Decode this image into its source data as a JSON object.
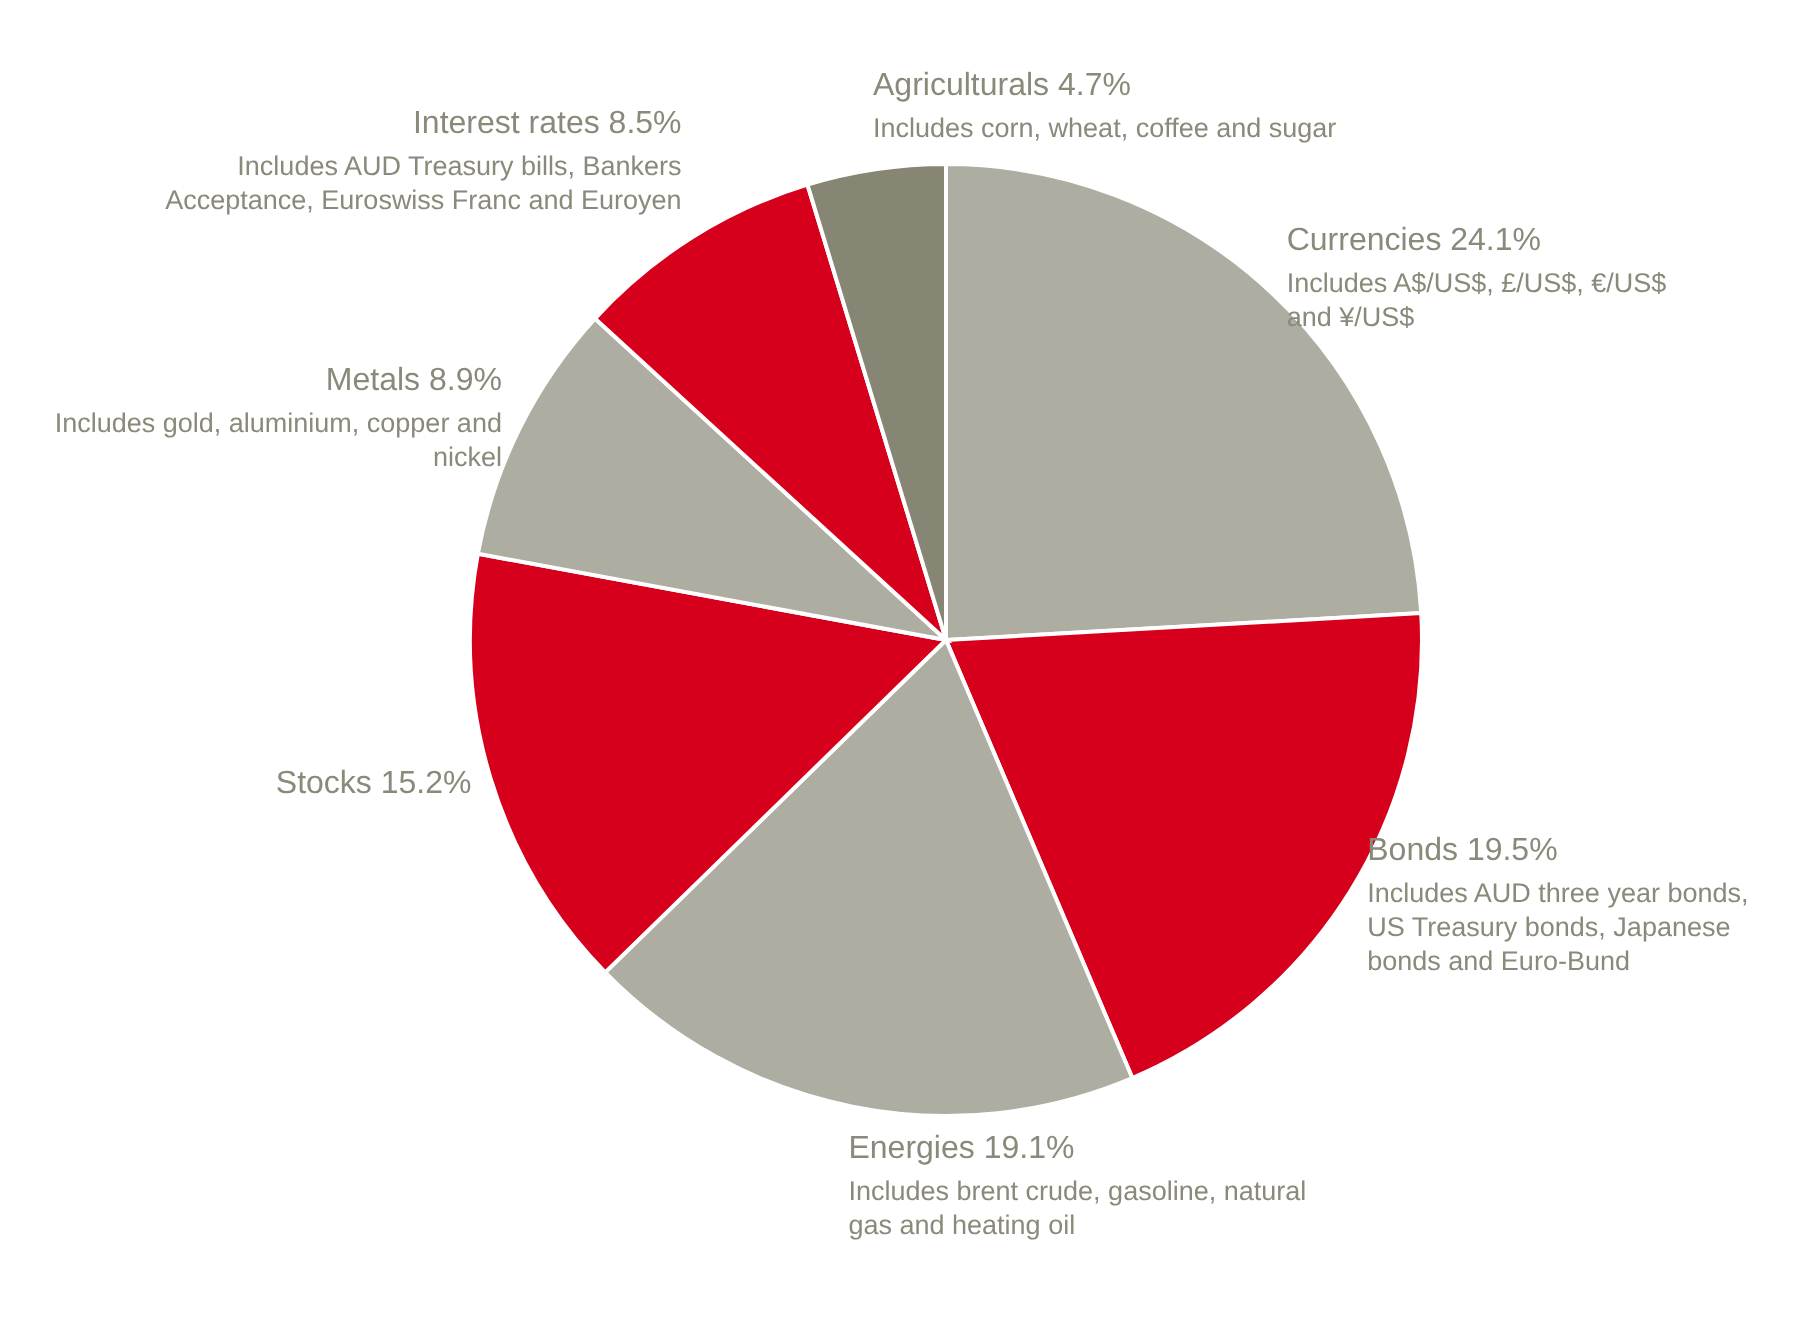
{
  "chart_data": {
    "type": "pie",
    "categories": [
      "Currencies",
      "Bonds",
      "Energies",
      "Stocks",
      "Metals",
      "Interest rates",
      "Agriculturals"
    ],
    "values": [
      24.1,
      19.5,
      19.1,
      15.2,
      8.9,
      8.5,
      4.7
    ],
    "value_labels": [
      "24.1%",
      "19.5%",
      "19.1%",
      "15.2%",
      "8.9%",
      "8.5%",
      "4.7%"
    ],
    "colors": [
      "#aeada1",
      "#d7001c",
      "#aeada1",
      "#d7001c",
      "#aeada1",
      "#d7001c",
      "#878675"
    ],
    "annotations": [
      {
        "text": "Includes A$/US$, £/US$, €/US$ and ¥/US$",
        "x": "Currencies"
      },
      {
        "text": "Includes AUD three year bonds, US Treasury bonds, Japanese bonds and Euro-Bund",
        "x": "Bonds"
      },
      {
        "text": "Includes brent crude, gasoline, natural gas and heating oil",
        "x": "Energies"
      },
      {
        "text": "Includes gold, aluminium, copper and nickel",
        "x": "Metals"
      },
      {
        "text": "Includes AUD Treasury bills, Bankers Acceptance, Euroswiss Franc and Euroyen",
        "x": "Interest rates"
      },
      {
        "text": "Includes corn, wheat, coffee and sugar",
        "x": "Agriculturals"
      }
    ]
  }
}
